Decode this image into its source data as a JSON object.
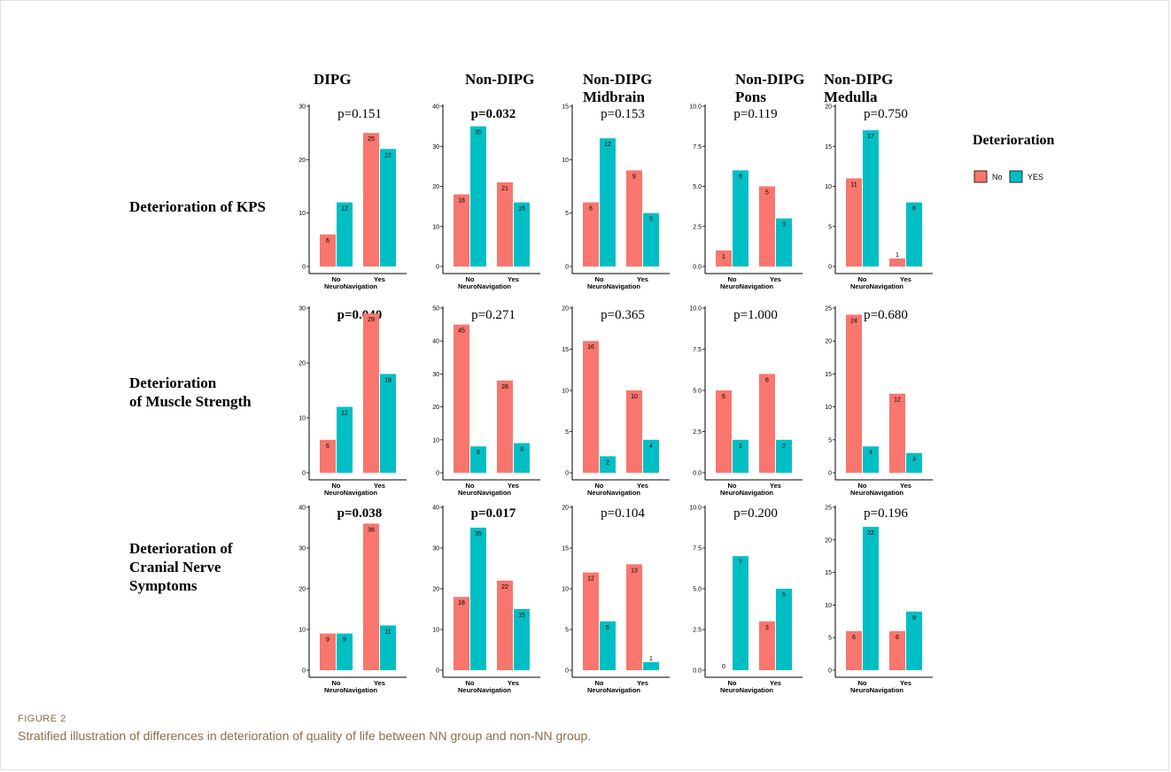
{
  "figure": {
    "label": "FIGURE 2",
    "caption": "Stratified illustration of differences in deterioration of quality of life between NN group and non-NN group."
  },
  "columns": [
    [
      "DIPG"
    ],
    [
      "Non-DIPG"
    ],
    [
      "Non-DIPG",
      "Midbrain"
    ],
    [
      "Non-DIPG",
      "Pons"
    ],
    [
      "Non-DIPG",
      "Medulla"
    ]
  ],
  "rows": [
    [
      "Deterioration of KPS"
    ],
    [
      "Deterioration",
      "of Muscle Strength"
    ],
    [
      "Deterioration of",
      "Cranial Nerve",
      "Symptoms"
    ]
  ],
  "legend": {
    "title": "Deterioration",
    "items": [
      {
        "label": "No",
        "color": "#F8766D"
      },
      {
        "label": "YES",
        "color": "#00BFC4"
      }
    ]
  },
  "colors": {
    "no": "#F8766D",
    "yes": "#00BFC4"
  },
  "chart_data": [
    {
      "type": "bar",
      "group": "DIPG",
      "outcome": "Deterioration of KPS",
      "p_value": "p=0.151",
      "significant": false,
      "categories": [
        "No",
        "Yes"
      ],
      "xlabel": "NeuroNavigation",
      "series": [
        {
          "name": "No",
          "values": [
            6,
            25
          ]
        },
        {
          "name": "YES",
          "values": [
            12,
            22
          ]
        }
      ],
      "ylim": [
        0,
        30
      ],
      "yticks": [
        "0",
        "10",
        "20",
        "30"
      ]
    },
    {
      "type": "bar",
      "group": "Non-DIPG",
      "outcome": "Deterioration of KPS",
      "p_value": "p=0.032",
      "significant": true,
      "categories": [
        "No",
        "Yes"
      ],
      "xlabel": "NeuroNavigation",
      "series": [
        {
          "name": "No",
          "values": [
            18,
            21
          ]
        },
        {
          "name": "YES",
          "values": [
            35,
            16
          ]
        }
      ],
      "ylim": [
        0,
        40
      ],
      "yticks": [
        "0",
        "10",
        "20",
        "30",
        "40"
      ]
    },
    {
      "type": "bar",
      "group": "Non-DIPG Midbrain",
      "outcome": "Deterioration of KPS",
      "p_value": "p=0.153",
      "significant": false,
      "categories": [
        "No",
        "Yes"
      ],
      "xlabel": "NeuroNavigation",
      "series": [
        {
          "name": "No",
          "values": [
            6,
            9
          ]
        },
        {
          "name": "YES",
          "values": [
            12,
            5
          ]
        }
      ],
      "ylim": [
        0,
        15
      ],
      "yticks": [
        "0",
        "5",
        "10",
        "15"
      ]
    },
    {
      "type": "bar",
      "group": "Non-DIPG Pons",
      "outcome": "Deterioration of KPS",
      "p_value": "p=0.119",
      "significant": false,
      "categories": [
        "No",
        "Yes"
      ],
      "xlabel": "NeuroNavigation",
      "series": [
        {
          "name": "No",
          "values": [
            1,
            5
          ]
        },
        {
          "name": "YES",
          "values": [
            6,
            3
          ]
        }
      ],
      "ylim": [
        0,
        10
      ],
      "yticks": [
        "0.0",
        "2.5",
        "5.0",
        "7.5",
        "10.0"
      ]
    },
    {
      "type": "bar",
      "group": "Non-DIPG Medulla",
      "outcome": "Deterioration of KPS",
      "p_value": "p=0.750",
      "significant": false,
      "categories": [
        "No",
        "Yes"
      ],
      "xlabel": "NeuroNavigation",
      "series": [
        {
          "name": "No",
          "values": [
            11,
            1
          ]
        },
        {
          "name": "YES",
          "values": [
            17,
            8
          ]
        }
      ],
      "ylim": [
        0,
        20
      ],
      "yticks": [
        "0",
        "5",
        "10",
        "15",
        "20"
      ]
    },
    {
      "type": "bar",
      "group": "DIPG",
      "outcome": "Deterioration of Muscle Strength",
      "p_value": "p=0.040",
      "significant": true,
      "categories": [
        "No",
        "Yes"
      ],
      "xlabel": "NeuroNavigation",
      "series": [
        {
          "name": "No",
          "values": [
            6,
            29
          ]
        },
        {
          "name": "YES",
          "values": [
            12,
            18
          ]
        }
      ],
      "ylim": [
        0,
        30
      ],
      "yticks": [
        "0",
        "10",
        "20",
        "30"
      ]
    },
    {
      "type": "bar",
      "group": "Non-DIPG",
      "outcome": "Deterioration of Muscle Strength",
      "p_value": "p=0.271",
      "significant": false,
      "categories": [
        "No",
        "Yes"
      ],
      "xlabel": "NeuroNavigation",
      "series": [
        {
          "name": "No",
          "values": [
            45,
            28
          ]
        },
        {
          "name": "YES",
          "values": [
            8,
            9
          ]
        }
      ],
      "ylim": [
        0,
        50
      ],
      "yticks": [
        "0",
        "10",
        "20",
        "30",
        "40",
        "50"
      ]
    },
    {
      "type": "bar",
      "group": "Non-DIPG Midbrain",
      "outcome": "Deterioration of Muscle Strength",
      "p_value": "p=0.365",
      "significant": false,
      "categories": [
        "No",
        "Yes"
      ],
      "xlabel": "NeuroNavigation",
      "series": [
        {
          "name": "No",
          "values": [
            16,
            10
          ]
        },
        {
          "name": "YES",
          "values": [
            2,
            4
          ]
        }
      ],
      "ylim": [
        0,
        20
      ],
      "yticks": [
        "0",
        "5",
        "10",
        "15",
        "20"
      ]
    },
    {
      "type": "bar",
      "group": "Non-DIPG Pons",
      "outcome": "Deterioration of Muscle Strength",
      "p_value": "p=1.000",
      "significant": false,
      "categories": [
        "No",
        "Yes"
      ],
      "xlabel": "NeuroNavigation",
      "series": [
        {
          "name": "No",
          "values": [
            5,
            6
          ]
        },
        {
          "name": "YES",
          "values": [
            2,
            2
          ]
        }
      ],
      "ylim": [
        0,
        10
      ],
      "yticks": [
        "0.0",
        "2.5",
        "5.0",
        "7.5",
        "10.0"
      ]
    },
    {
      "type": "bar",
      "group": "Non-DIPG Medulla",
      "outcome": "Deterioration of Muscle Strength",
      "p_value": "p=0.680",
      "significant": false,
      "categories": [
        "No",
        "Yes"
      ],
      "xlabel": "NeuroNavigation",
      "series": [
        {
          "name": "No",
          "values": [
            24,
            12
          ]
        },
        {
          "name": "YES",
          "values": [
            4,
            3
          ]
        }
      ],
      "ylim": [
        0,
        25
      ],
      "yticks": [
        "0",
        "5",
        "10",
        "15",
        "20",
        "25"
      ]
    },
    {
      "type": "bar",
      "group": "DIPG",
      "outcome": "Deterioration of Cranial Nerve Symptoms",
      "p_value": "p=0.038",
      "significant": true,
      "categories": [
        "No",
        "Yes"
      ],
      "xlabel": "NeuroNavigation",
      "series": [
        {
          "name": "No",
          "values": [
            9,
            36
          ]
        },
        {
          "name": "YES",
          "values": [
            9,
            11
          ]
        }
      ],
      "ylim": [
        0,
        40
      ],
      "yticks": [
        "0",
        "10",
        "20",
        "30",
        "40"
      ]
    },
    {
      "type": "bar",
      "group": "Non-DIPG",
      "outcome": "Deterioration of Cranial Nerve Symptoms",
      "p_value": "p=0.017",
      "significant": true,
      "categories": [
        "No",
        "Yes"
      ],
      "xlabel": "NeuroNavigation",
      "series": [
        {
          "name": "No",
          "values": [
            18,
            22
          ]
        },
        {
          "name": "YES",
          "values": [
            35,
            15
          ]
        }
      ],
      "ylim": [
        0,
        40
      ],
      "yticks": [
        "0",
        "10",
        "20",
        "30",
        "40"
      ]
    },
    {
      "type": "bar",
      "group": "Non-DIPG Midbrain",
      "outcome": "Deterioration of Cranial Nerve Symptoms",
      "p_value": "p=0.104",
      "significant": false,
      "categories": [
        "No",
        "Yes"
      ],
      "xlabel": "NeuroNavigation",
      "series": [
        {
          "name": "No",
          "values": [
            12,
            13
          ]
        },
        {
          "name": "YES",
          "values": [
            6,
            1
          ]
        }
      ],
      "ylim": [
        0,
        20
      ],
      "yticks": [
        "0",
        "5",
        "10",
        "15",
        "20"
      ]
    },
    {
      "type": "bar",
      "group": "Non-DIPG Pons",
      "outcome": "Deterioration of Cranial Nerve Symptoms",
      "p_value": "p=0.200",
      "significant": false,
      "categories": [
        "No",
        "Yes"
      ],
      "xlabel": "NeuroNavigation",
      "series": [
        {
          "name": "No",
          "values": [
            0,
            3
          ]
        },
        {
          "name": "YES",
          "values": [
            7,
            5
          ]
        }
      ],
      "ylim": [
        0,
        10
      ],
      "yticks": [
        "0.0",
        "2.5",
        "5.0",
        "7.5",
        "10.0"
      ]
    },
    {
      "type": "bar",
      "group": "Non-DIPG Medulla",
      "outcome": "Deterioration of Cranial Nerve Symptoms",
      "p_value": "p=0.196",
      "significant": false,
      "categories": [
        "No",
        "Yes"
      ],
      "xlabel": "NeuroNavigation",
      "series": [
        {
          "name": "No",
          "values": [
            6,
            6
          ]
        },
        {
          "name": "YES",
          "values": [
            22,
            9
          ]
        }
      ],
      "ylim": [
        0,
        25
      ],
      "yticks": [
        "0",
        "5",
        "10",
        "15",
        "20",
        "25"
      ]
    }
  ]
}
